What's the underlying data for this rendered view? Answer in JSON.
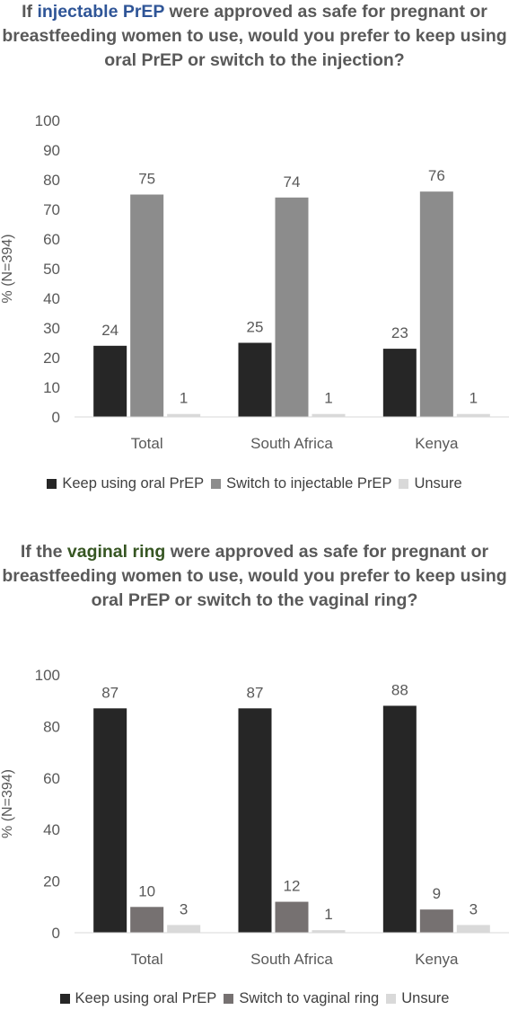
{
  "chart1": {
    "title_pre": "If ",
    "title_highlight": "injectable PrEP",
    "title_post": " were approved as safe for pregnant or breastfeeding women to use, would you prefer to keep using oral PrEP or switch to the injection?",
    "highlight_color": "#2f5597"
  },
  "chart2": {
    "title_pre": "If the ",
    "title_highlight": "vaginal ring",
    "title_post": " were approved as safe for pregnant or breastfeeding women to use, would you prefer to keep using oral PrEP or switch to the vaginal ring?",
    "highlight_color": "#375623"
  },
  "chart_data": [
    {
      "type": "bar",
      "categories": [
        "Total",
        "South Africa",
        "Kenya"
      ],
      "series": [
        {
          "name": "Keep using oral PrEP",
          "values": [
            24,
            25,
            23
          ],
          "color": "#262626"
        },
        {
          "name": "Switch to injectable PrEP",
          "values": [
            75,
            74,
            76
          ],
          "color": "#8c8c8c"
        },
        {
          "name": "Unsure",
          "values": [
            1,
            1,
            1
          ],
          "color": "#d9d9d9"
        }
      ],
      "ylabel": "% (N=394)",
      "ylim": [
        0,
        100
      ],
      "yticks": [
        0,
        10,
        20,
        30,
        40,
        50,
        60,
        70,
        80,
        90,
        100
      ],
      "grid": false,
      "legend_position": "bottom"
    },
    {
      "type": "bar",
      "categories": [
        "Total",
        "South Africa",
        "Kenya"
      ],
      "series": [
        {
          "name": "Keep using oral PrEP",
          "values": [
            87,
            87,
            88
          ],
          "color": "#262626"
        },
        {
          "name": "Switch to vaginal ring",
          "values": [
            10,
            12,
            9
          ],
          "color": "#767171"
        },
        {
          "name": "Unsure",
          "values": [
            3,
            1,
            3
          ],
          "color": "#d9d9d9"
        }
      ],
      "ylabel": "% (N=394)",
      "ylim": [
        0,
        100
      ],
      "yticks": [
        0,
        20,
        40,
        60,
        80,
        100
      ],
      "grid": false,
      "legend_position": "bottom"
    }
  ]
}
